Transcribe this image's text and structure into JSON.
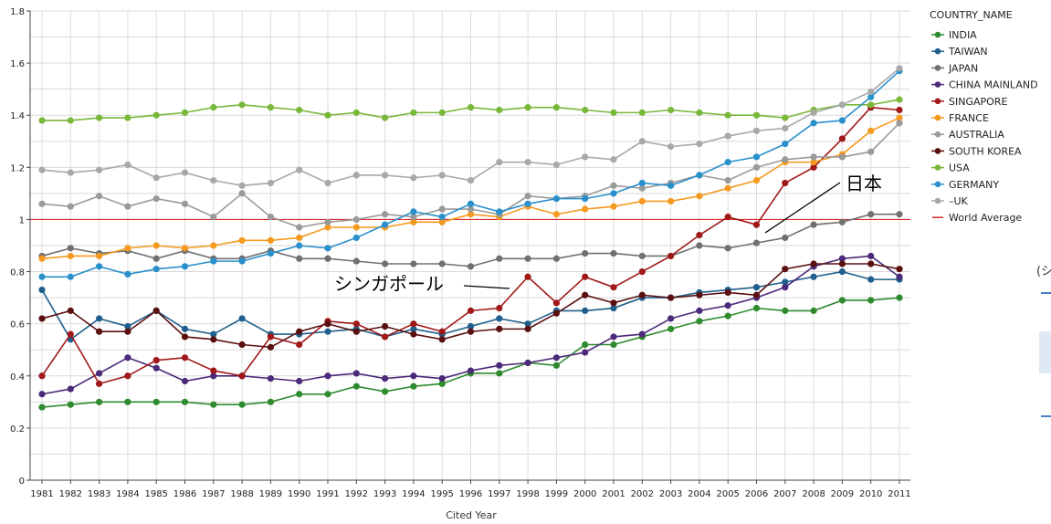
{
  "chart_data": {
    "type": "line",
    "xlabel": "Cited Year",
    "ylabel": "",
    "ylim": [
      0,
      1.8
    ],
    "yticks": [
      "0",
      "0.2",
      "0.4",
      "0.6",
      "0.8",
      "1",
      "1.2",
      "1.4",
      "1.6",
      "1.8"
    ],
    "x": [
      "1981",
      "1982",
      "1983",
      "1984",
      "1985",
      "1986",
      "1987",
      "1988",
      "1989",
      "1990",
      "1991",
      "1992",
      "1993",
      "1994",
      "1995",
      "1996",
      "1997",
      "1998",
      "1999",
      "2000",
      "2001",
      "2002",
      "2003",
      "2004",
      "2005",
      "2006",
      "2007",
      "2008",
      "2009",
      "2010",
      "2011"
    ],
    "grid": true,
    "legend_title": "COUNTRY_NAME",
    "legend_position": "right",
    "series": [
      {
        "name": "INDIA",
        "color": "#2e8b2e",
        "values": [
          0.28,
          0.29,
          0.3,
          0.3,
          0.3,
          0.3,
          0.29,
          0.29,
          0.3,
          0.33,
          0.33,
          0.36,
          0.34,
          0.36,
          0.37,
          0.41,
          0.41,
          0.45,
          0.44,
          0.52,
          0.52,
          0.55,
          0.58,
          0.61,
          0.63,
          0.66,
          0.65,
          0.65,
          0.69,
          0.69,
          0.7
        ]
      },
      {
        "name": "TAIWAN",
        "color": "#1f5f8b",
        "values": [
          0.73,
          0.54,
          0.62,
          0.59,
          0.65,
          0.58,
          0.56,
          0.62,
          0.56,
          0.56,
          0.57,
          0.58,
          0.55,
          0.58,
          0.56,
          0.59,
          0.62,
          0.6,
          0.65,
          0.65,
          0.66,
          0.7,
          0.7,
          0.72,
          0.73,
          0.74,
          0.76,
          0.78,
          0.8,
          0.77,
          0.77
        ]
      },
      {
        "name": "JAPAN",
        "color": "#707070",
        "values": [
          0.86,
          0.89,
          0.87,
          0.88,
          0.85,
          0.88,
          0.85,
          0.85,
          0.88,
          0.85,
          0.85,
          0.84,
          0.83,
          0.83,
          0.83,
          0.82,
          0.85,
          0.85,
          0.85,
          0.87,
          0.87,
          0.86,
          0.86,
          0.9,
          0.89,
          0.91,
          0.93,
          0.98,
          0.99,
          1.02,
          1.02
        ]
      },
      {
        "name": "CHINA MAINLAND",
        "color": "#4b2a7a",
        "values": [
          0.33,
          0.35,
          0.41,
          0.47,
          0.43,
          0.38,
          0.4,
          0.4,
          0.39,
          0.38,
          0.4,
          0.41,
          0.39,
          0.4,
          0.39,
          0.42,
          0.44,
          0.45,
          0.47,
          0.49,
          0.55,
          0.56,
          0.62,
          0.65,
          0.67,
          0.7,
          0.74,
          0.82,
          0.85,
          0.86,
          0.78
        ]
      },
      {
        "name": "SINGAPORE",
        "color": "#a01818",
        "values": [
          0.4,
          0.56,
          0.37,
          0.4,
          0.46,
          0.47,
          0.42,
          0.4,
          0.55,
          0.52,
          0.61,
          0.6,
          0.55,
          0.6,
          0.57,
          0.65,
          0.66,
          0.78,
          0.68,
          0.78,
          0.74,
          0.8,
          0.86,
          0.94,
          1.01,
          0.98,
          1.14,
          1.2,
          1.31,
          1.43,
          1.42
        ]
      },
      {
        "name": "FRANCE",
        "color": "#f59a20",
        "values": [
          0.85,
          0.86,
          0.86,
          0.89,
          0.9,
          0.89,
          0.9,
          0.92,
          0.92,
          0.93,
          0.97,
          0.97,
          0.97,
          0.99,
          0.99,
          1.02,
          1.01,
          1.05,
          1.02,
          1.04,
          1.05,
          1.07,
          1.07,
          1.09,
          1.12,
          1.15,
          1.22,
          1.22,
          1.25,
          1.34,
          1.39
        ]
      },
      {
        "name": "AUSTRALIA",
        "color": "#9a9a9a",
        "values": [
          1.06,
          1.05,
          1.09,
          1.05,
          1.08,
          1.06,
          1.01,
          1.1,
          1.01,
          0.97,
          0.99,
          1.0,
          1.02,
          1.01,
          1.04,
          1.04,
          1.02,
          1.09,
          1.08,
          1.09,
          1.13,
          1.12,
          1.14,
          1.17,
          1.15,
          1.2,
          1.23,
          1.24,
          1.24,
          1.26,
          1.37
        ]
      },
      {
        "name": "SOUTH KOREA",
        "color": "#5a1010",
        "values": [
          0.62,
          0.65,
          0.57,
          0.57,
          0.65,
          0.55,
          0.54,
          0.52,
          0.51,
          0.57,
          0.6,
          0.57,
          0.59,
          0.56,
          0.54,
          0.57,
          0.58,
          0.58,
          0.64,
          0.71,
          0.68,
          0.71,
          0.7,
          0.71,
          0.72,
          0.71,
          0.81,
          0.83,
          0.83,
          0.83,
          0.81
        ]
      },
      {
        "name": "USA",
        "color": "#7ab83a",
        "values": [
          1.38,
          1.38,
          1.39,
          1.39,
          1.4,
          1.41,
          1.43,
          1.44,
          1.43,
          1.42,
          1.4,
          1.41,
          1.39,
          1.41,
          1.41,
          1.43,
          1.42,
          1.43,
          1.43,
          1.42,
          1.41,
          1.41,
          1.42,
          1.41,
          1.4,
          1.4,
          1.39,
          1.42,
          1.44,
          1.44,
          1.46
        ]
      },
      {
        "name": "GERMANY",
        "color": "#2a90cc",
        "values": [
          0.78,
          0.78,
          0.82,
          0.79,
          0.81,
          0.82,
          0.84,
          0.84,
          0.87,
          0.9,
          0.89,
          0.93,
          0.98,
          1.03,
          1.01,
          1.06,
          1.03,
          1.06,
          1.08,
          1.08,
          1.1,
          1.14,
          1.13,
          1.17,
          1.22,
          1.24,
          1.29,
          1.37,
          1.38,
          1.47,
          1.57
        ]
      },
      {
        "name": "UK",
        "color": "#a8a8a8",
        "values": [
          1.19,
          1.18,
          1.19,
          1.21,
          1.16,
          1.18,
          1.15,
          1.13,
          1.14,
          1.19,
          1.14,
          1.17,
          1.17,
          1.16,
          1.17,
          1.15,
          1.22,
          1.22,
          1.21,
          1.24,
          1.23,
          1.3,
          1.28,
          1.29,
          1.32,
          1.34,
          1.35,
          1.41,
          1.44,
          1.49,
          1.58
        ]
      }
    ],
    "legend_labels": [
      "INDIA",
      "TAIWAN",
      "JAPAN",
      "CHINA MAINLAND",
      "SINGAPORE",
      "FRANCE",
      "AUSTRALIA",
      "SOUTH KOREA",
      "USA",
      "GERMANY",
      "–UK",
      "World Average"
    ],
    "reference_line": {
      "name": "World Average",
      "value": 1.0,
      "color": "#d62828"
    },
    "annotations": [
      {
        "text": "日本",
        "series": "JAPAN",
        "x": "2006"
      },
      {
        "text": "シンガポール",
        "series": "SINGAPORE",
        "x": "1998"
      }
    ],
    "edge_text": "(シ"
  }
}
